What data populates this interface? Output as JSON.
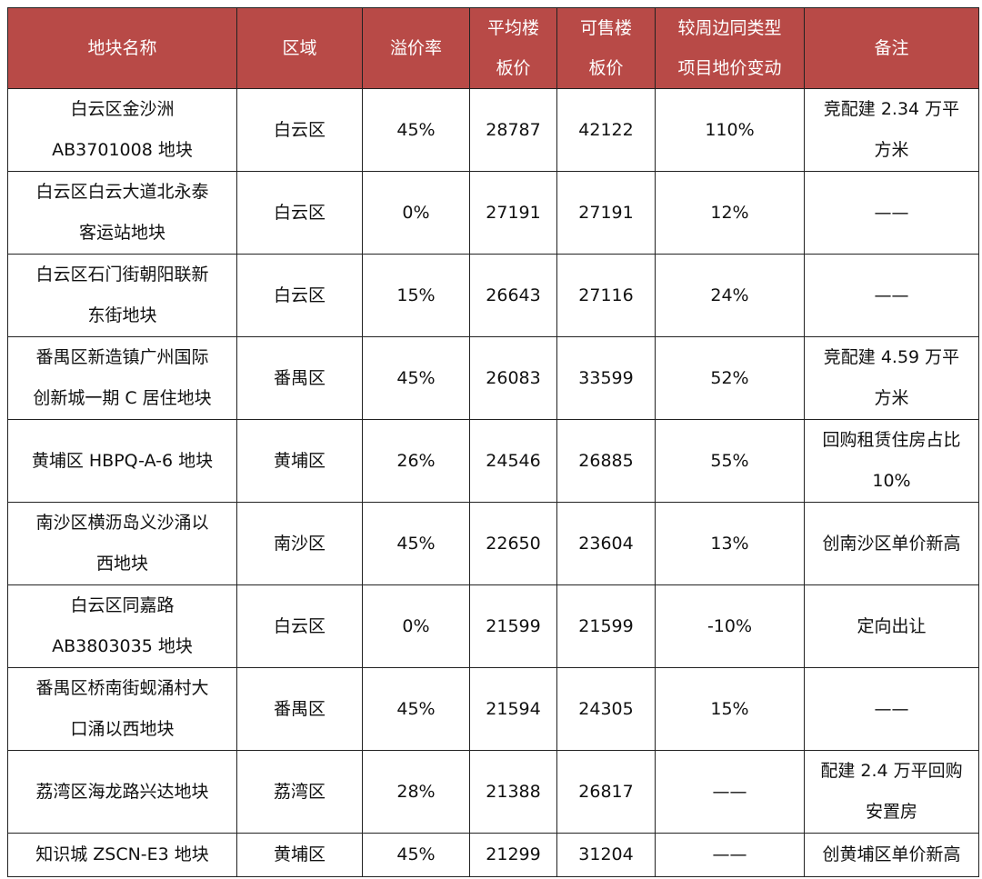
{
  "table": {
    "header": [
      [
        "地块名称"
      ],
      [
        "区域"
      ],
      [
        "溢价率"
      ],
      [
        "平均楼",
        "板价"
      ],
      [
        "可售楼",
        "板价"
      ],
      [
        "较周边同类型",
        "项目地价变动"
      ],
      [
        "备注"
      ]
    ],
    "rows": [
      [
        [
          "白云区金沙洲",
          "AB3701008 地块"
        ],
        "白云区",
        "45%",
        "28787",
        "42122",
        "110%",
        [
          "竞配建 2.34 万平",
          "方米"
        ]
      ],
      [
        [
          "白云区白云大道北永泰",
          "客运站地块"
        ],
        "白云区",
        "0%",
        "27191",
        "27191",
        "12%",
        "——"
      ],
      [
        [
          "白云区石门街朝阳联新",
          "东街地块"
        ],
        "白云区",
        "15%",
        "26643",
        "27116",
        "24%",
        "——"
      ],
      [
        [
          "番禺区新造镇广州国际",
          "创新城一期 C 居住地块"
        ],
        "番禺区",
        "45%",
        "26083",
        "33599",
        "52%",
        [
          "竞配建 4.59 万平",
          "方米"
        ]
      ],
      [
        "黄埔区 HBPQ-A-6 地块",
        "黄埔区",
        "26%",
        "24546",
        "26885",
        "55%",
        [
          "回购租赁住房占比",
          "10%"
        ]
      ],
      [
        [
          "南沙区横沥岛义沙涌以",
          "西地块"
        ],
        "南沙区",
        "45%",
        "22650",
        "23604",
        "13%",
        "创南沙区单价新高"
      ],
      [
        [
          "白云区同嘉路",
          "AB3803035 地块"
        ],
        "白云区",
        "0%",
        "21599",
        "21599",
        "-10%",
        "定向出让"
      ],
      [
        [
          "番禺区桥南街蚬涌村大",
          "口涌以西地块"
        ],
        "番禺区",
        "45%",
        "21594",
        "24305",
        "15%",
        "——"
      ],
      [
        "荔湾区海龙路兴达地块",
        "荔湾区",
        "28%",
        "21388",
        "26817",
        "——",
        [
          "配建 2.4 万平回购",
          "安置房"
        ]
      ],
      [
        "知识城 ZSCN-E3 地块",
        "黄埔区",
        "45%",
        "21299",
        "31204",
        "——",
        "创黄埔区单价新高"
      ]
    ]
  }
}
